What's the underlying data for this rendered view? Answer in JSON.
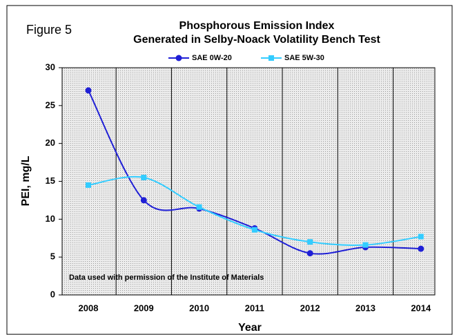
{
  "chart_data": {
    "type": "line",
    "figure_label": "Figure 5",
    "title": "Phosphorous Emission Index",
    "subtitle": "Generated in Selby-Noack Volatility Bench Test",
    "x_label": "Year",
    "y_label": "PEI, mg/L",
    "annotation": "Data used with permission of the Institute of Materials",
    "categories": [
      "2008",
      "2009",
      "2010",
      "2011",
      "2012",
      "2013",
      "2014"
    ],
    "series": [
      {
        "name": "SAE 0W-20",
        "color": "#1f1fd6",
        "marker": "circle",
        "values": [
          27,
          12.5,
          11.4,
          8.8,
          5.5,
          6.3,
          6.1
        ]
      },
      {
        "name": "SAE 5W-30",
        "color": "#33ccff",
        "marker": "square",
        "values": [
          14.5,
          15.5,
          11.6,
          8.6,
          7.0,
          6.6,
          7.7
        ]
      }
    ],
    "ylim": [
      0,
      30
    ],
    "yticks": [
      0,
      5,
      10,
      15,
      20,
      25,
      30
    ],
    "grid": true,
    "smooth": true
  }
}
